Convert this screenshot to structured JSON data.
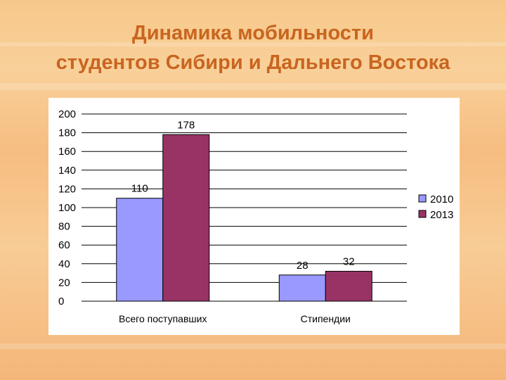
{
  "slide": {
    "title_line1": "Динамика мобильности",
    "title_line2": "студентов Сибири и Дальнего Востока"
  },
  "colors": {
    "title": "#c8651f",
    "series_2010": "#9999ff",
    "series_2013": "#993366",
    "background": "#f8c890"
  },
  "chart_data": {
    "type": "bar",
    "categories": [
      "Всего поступавших",
      "Стипендии"
    ],
    "series": [
      {
        "name": "2010",
        "values": [
          110,
          28
        ],
        "color": "#9999ff"
      },
      {
        "name": "2013",
        "values": [
          178,
          32
        ],
        "color": "#993366"
      }
    ],
    "title": "",
    "xlabel": "",
    "ylabel": "",
    "ylim": [
      0,
      200
    ],
    "yticks": [
      0,
      20,
      40,
      60,
      80,
      100,
      120,
      140,
      160,
      180,
      200
    ],
    "grid": true,
    "legend": "right",
    "data_labels": true
  }
}
